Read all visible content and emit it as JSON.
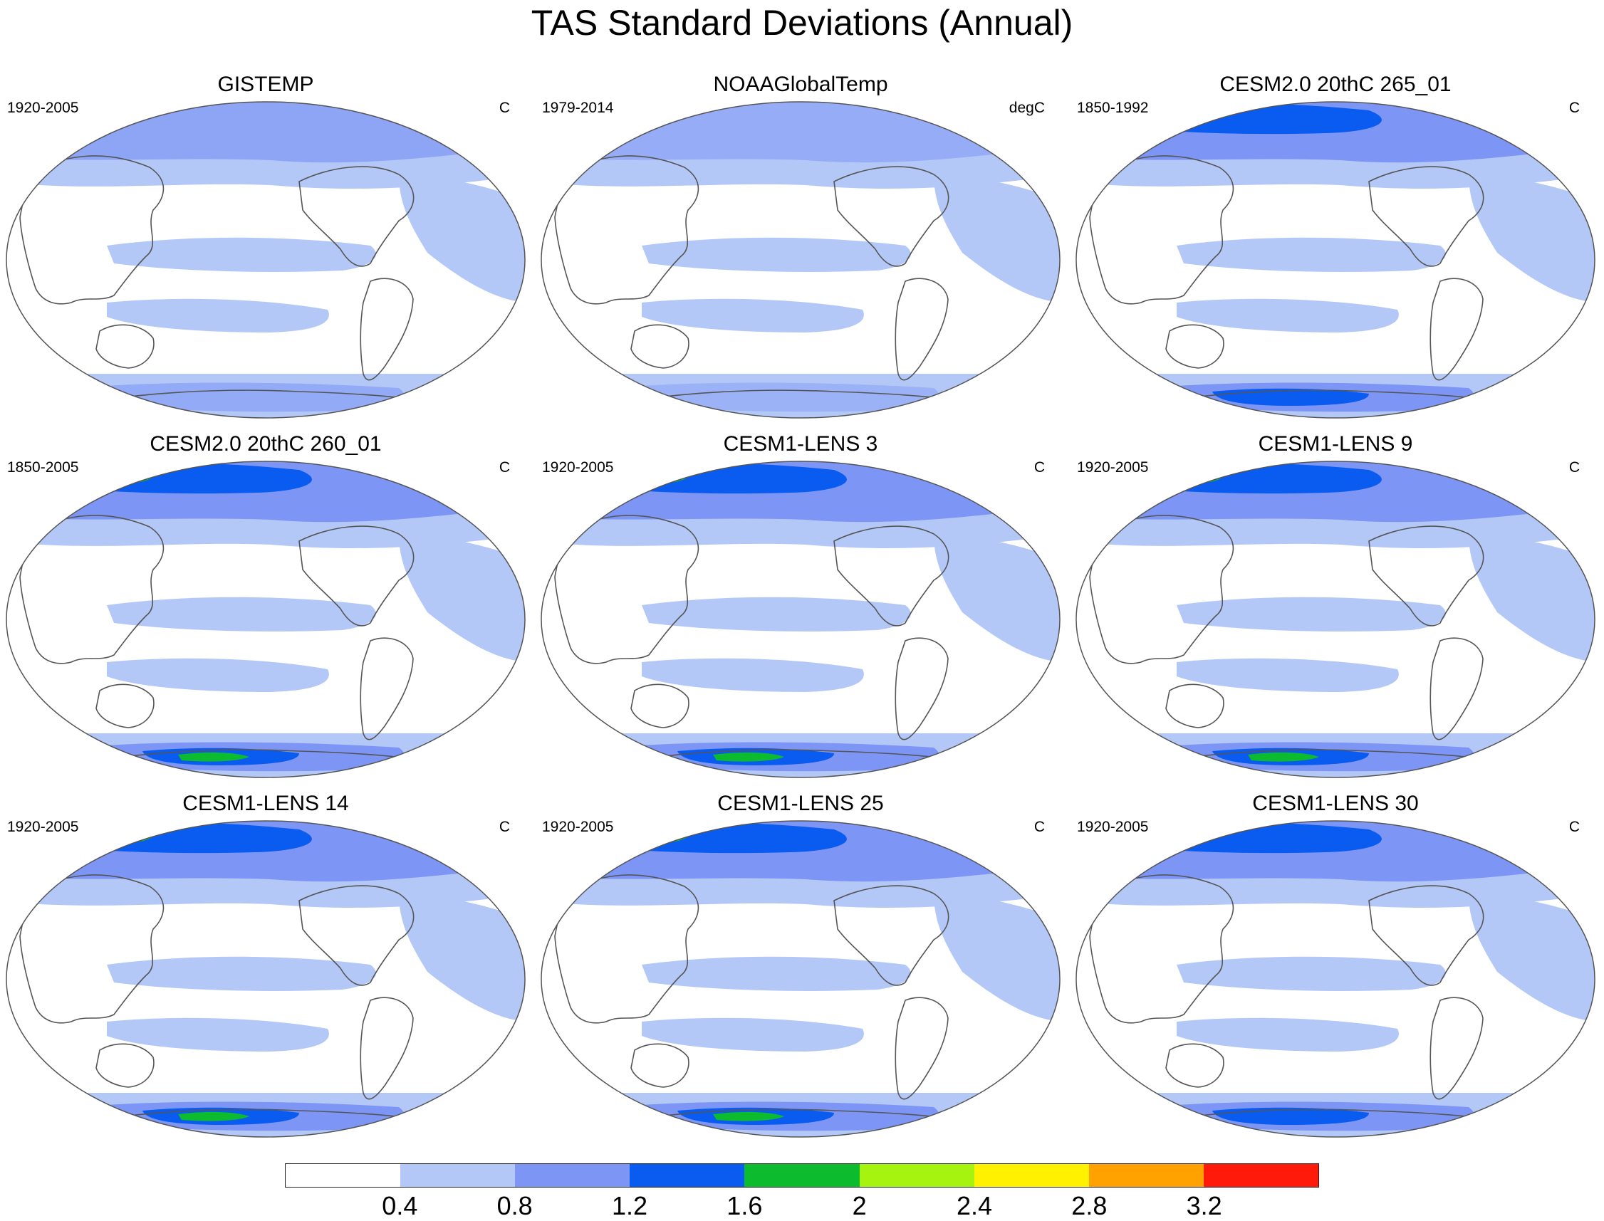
{
  "figure_title": "TAS Standard Deviations (Annual)",
  "panels": [
    {
      "title": "GISTEMP",
      "period": "1920-2005",
      "units": "C",
      "intensity": 0.3
    },
    {
      "title": "NOAAGlobalTemp",
      "period": "1979-2014",
      "units": "degC",
      "intensity": 0.15
    },
    {
      "title": "CESM2.0 20thC 265_01",
      "period": "1850-1992",
      "units": "C",
      "intensity": 0.75
    },
    {
      "title": "CESM2.0 20thC 260_01",
      "period": "1850-2005",
      "units": "C",
      "intensity": 0.85
    },
    {
      "title": "CESM1-LENS 3",
      "period": "1920-2005",
      "units": "C",
      "intensity": 0.95
    },
    {
      "title": "CESM1-LENS 9",
      "period": "1920-2005",
      "units": "C",
      "intensity": 0.9
    },
    {
      "title": "CESM1-LENS 14",
      "period": "1920-2005",
      "units": "C",
      "intensity": 0.8
    },
    {
      "title": "CESM1-LENS 25",
      "period": "1920-2005",
      "units": "C",
      "intensity": 0.85
    },
    {
      "title": "CESM1-LENS 30",
      "period": "1920-2005",
      "units": "C",
      "intensity": 0.7
    }
  ],
  "colorbar": {
    "labels": [
      "0.4",
      "0.8",
      "1.2",
      "1.6",
      "2",
      "2.4",
      "2.8",
      "3.2"
    ],
    "colors": [
      "#ffffff",
      "#b4c8f8",
      "#7d96f5",
      "#0a5cf0",
      "#0cbb2e",
      "#a5f30f",
      "#fff100",
      "#ffa200",
      "#ff1a0a"
    ]
  },
  "colors": {
    "land_outline": "#555555",
    "map_border": "#555555"
  }
}
